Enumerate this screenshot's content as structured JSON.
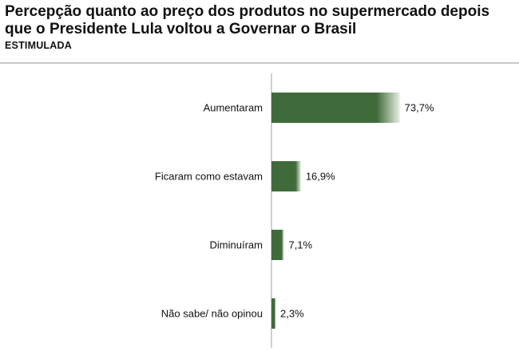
{
  "header": {
    "title": "Percepção quanto ao preço dos produtos no supermercado depois que o Presidente Lula voltou a Governar o Brasil",
    "subtitle": "ESTIMULADA"
  },
  "colors": {
    "bar_dark": "#3f6a3a",
    "bar_light": "#e6efe2",
    "axis": "#bfbfbf"
  },
  "chart_data": {
    "type": "bar",
    "orientation": "horizontal",
    "title": "Percepção quanto ao preço dos produtos no supermercado depois que o Presidente Lula voltou a Governar o Brasil",
    "subtitle": "ESTIMULADA",
    "categories": [
      "Aumentaram",
      "Ficaram como estavam",
      "Diminuíram",
      "Não sabe/ não opinou"
    ],
    "values": [
      73.7,
      16.9,
      7.1,
      2.3
    ],
    "value_labels": [
      "73,7%",
      "16,9%",
      "7,1%",
      "2,3%"
    ],
    "xlim": [
      0,
      100
    ],
    "grid": false,
    "legend": "none"
  }
}
